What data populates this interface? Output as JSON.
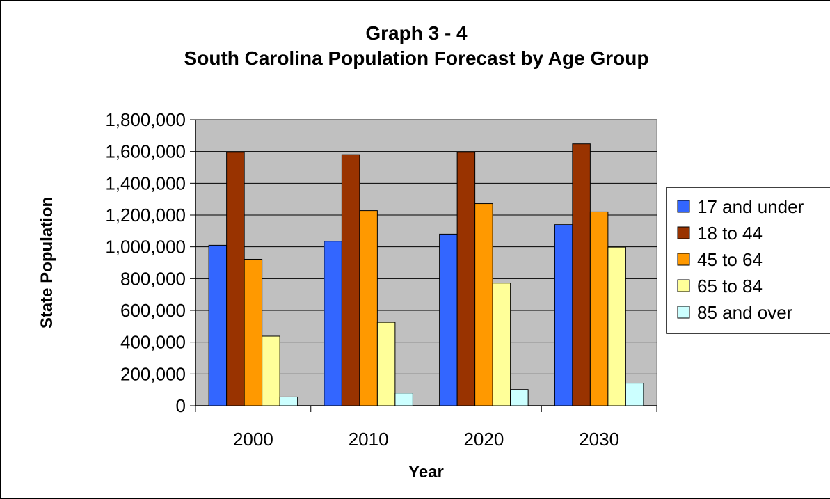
{
  "chart_data": {
    "type": "bar",
    "title_line1": "Graph 3 - 4",
    "title_line2": "South Carolina Population Forecast by Age Group",
    "xlabel": "Year",
    "ylabel": "State Population",
    "categories": [
      "2000",
      "2010",
      "2020",
      "2030"
    ],
    "ylim": [
      0,
      1800000
    ],
    "yticks": [
      0,
      200000,
      400000,
      600000,
      800000,
      1000000,
      1200000,
      1400000,
      1600000,
      1800000
    ],
    "ytick_labels": [
      "0",
      "200,000",
      "400,000",
      "600,000",
      "800,000",
      "1,000,000",
      "1,200,000",
      "1,400,000",
      "1,600,000",
      "1,800,000"
    ],
    "grid": true,
    "plot_background": "#c0c0c0",
    "legend_position": "right",
    "series": [
      {
        "name": "17 and under",
        "color": "#3366ff",
        "values": [
          1010000,
          1035000,
          1080000,
          1140000
        ]
      },
      {
        "name": "18 to 44",
        "color": "#993300",
        "values": [
          1595000,
          1580000,
          1595000,
          1648000
        ]
      },
      {
        "name": "45 to 64",
        "color": "#ff9900",
        "values": [
          922000,
          1228000,
          1272000,
          1220000
        ]
      },
      {
        "name": "65 to 84",
        "color": "#ffff99",
        "values": [
          438000,
          525000,
          772000,
          998000
        ]
      },
      {
        "name": "85 and over",
        "color": "#ccffff",
        "values": [
          55000,
          80000,
          102000,
          142000
        ]
      }
    ]
  }
}
